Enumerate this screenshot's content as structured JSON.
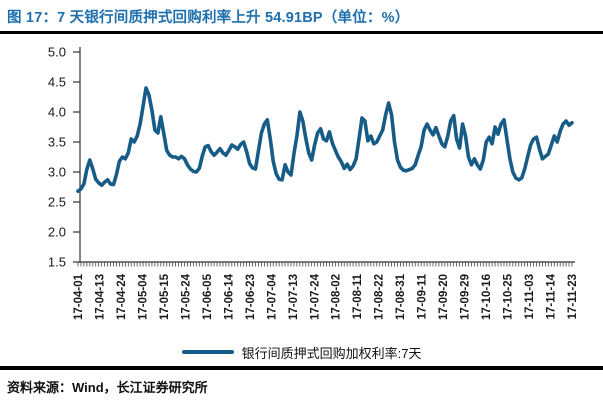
{
  "header": {
    "title": "图 17：7 天银行间质押式回购利率上升 54.91BP（单位：%）"
  },
  "legend": {
    "label": "银行间质押式回购加权利率:7天"
  },
  "footer": {
    "source": "资料来源：Wind，长江证券研究所"
  },
  "colors": {
    "line": "#175B87",
    "title": "#1E6FAD",
    "rule": "#000000",
    "axis": "#333333",
    "tick_label": "#1a1a1a"
  },
  "chart_data": {
    "type": "line",
    "title": "7 天银行间质押式回购利率",
    "xlabel": "",
    "ylabel": "",
    "unit": "%",
    "ylim": [
      1.5,
      5.0
    ],
    "grid": false,
    "legend_position": "bottom",
    "y_tick_labels": [
      "5.0",
      "4.5",
      "4.0",
      "3.5",
      "3.0",
      "2.5",
      "2.0",
      "1.5"
    ],
    "x_tick_labels": [
      "17-04-01",
      "17-04-13",
      "17-04-24",
      "17-05-04",
      "17-05-15",
      "17-05-24",
      "17-06-05",
      "17-06-14",
      "17-06-23",
      "17-07-04",
      "17-07-13",
      "17-07-24",
      "17-08-02",
      "17-08-11",
      "17-08-22",
      "17-08-31",
      "17-09-11",
      "17-09-20",
      "17-09-29",
      "17-10-16",
      "17-10-25",
      "17-11-03",
      "17-11-14",
      "17-11-23"
    ],
    "series": [
      {
        "name": "银行间质押式回购加权利率:7天",
        "values": [
          2.68,
          2.72,
          2.8,
          3.05,
          3.2,
          3.05,
          2.88,
          2.82,
          2.78,
          2.83,
          2.87,
          2.8,
          2.79,
          2.96,
          3.18,
          3.25,
          3.22,
          3.32,
          3.55,
          3.5,
          3.6,
          3.8,
          4.1,
          4.4,
          4.28,
          4.02,
          3.7,
          3.65,
          3.92,
          3.64,
          3.36,
          3.28,
          3.25,
          3.25,
          3.22,
          3.26,
          3.22,
          3.12,
          3.05,
          3.01,
          3.0,
          3.06,
          3.26,
          3.42,
          3.44,
          3.34,
          3.28,
          3.33,
          3.39,
          3.32,
          3.28,
          3.36,
          3.45,
          3.42,
          3.38,
          3.46,
          3.5,
          3.34,
          3.14,
          3.07,
          3.05,
          3.35,
          3.65,
          3.8,
          3.87,
          3.55,
          3.18,
          2.97,
          2.88,
          2.87,
          3.12,
          3.0,
          2.95,
          3.3,
          3.6,
          4.0,
          3.85,
          3.56,
          3.32,
          3.2,
          3.45,
          3.65,
          3.72,
          3.55,
          3.52,
          3.67,
          3.48,
          3.36,
          3.25,
          3.17,
          3.06,
          3.13,
          3.04,
          3.1,
          3.22,
          3.55,
          3.9,
          3.85,
          3.52,
          3.6,
          3.47,
          3.5,
          3.6,
          3.7,
          3.95,
          4.15,
          3.95,
          3.5,
          3.2,
          3.08,
          3.03,
          3.02,
          3.04,
          3.06,
          3.12,
          3.28,
          3.42,
          3.7,
          3.8,
          3.7,
          3.62,
          3.74,
          3.6,
          3.47,
          3.42,
          3.6,
          3.85,
          3.94,
          3.55,
          3.4,
          3.8,
          3.6,
          3.25,
          3.12,
          3.22,
          3.12,
          3.05,
          3.2,
          3.5,
          3.58,
          3.47,
          3.75,
          3.63,
          3.8,
          3.87,
          3.55,
          3.22,
          3.0,
          2.9,
          2.87,
          2.9,
          3.05,
          3.25,
          3.45,
          3.55,
          3.58,
          3.38,
          3.22,
          3.26,
          3.3,
          3.45,
          3.6,
          3.5,
          3.68,
          3.8,
          3.85,
          3.78,
          3.82
        ]
      }
    ]
  }
}
